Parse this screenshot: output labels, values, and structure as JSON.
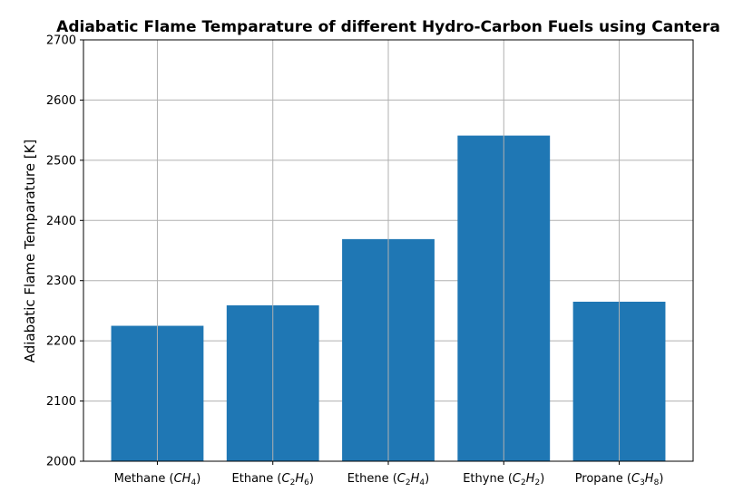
{
  "chart_data": {
    "type": "bar",
    "title": "Adiabatic Flame Temparature of different Hydro-Carbon Fuels using Cantera",
    "xlabel": "",
    "ylabel": "Adiabatic Flame Temparature [K]",
    "ylim": [
      2000,
      2700
    ],
    "yticks": [
      2000,
      2100,
      2200,
      2300,
      2400,
      2500,
      2600,
      2700
    ],
    "grid": true,
    "bar_color": "#1f77b4",
    "categories": [
      {
        "name": "Methane",
        "formula": [
          [
            "C",
            ""
          ],
          [
            "H",
            "4"
          ]
        ]
      },
      {
        "name": "Ethane",
        "formula": [
          [
            "C",
            "2"
          ],
          [
            "H",
            "6"
          ]
        ]
      },
      {
        "name": "Ethene",
        "formula": [
          [
            "C",
            "2"
          ],
          [
            "H",
            "4"
          ]
        ]
      },
      {
        "name": "Ethyne",
        "formula": [
          [
            "C",
            "2"
          ],
          [
            "H",
            "2"
          ]
        ]
      },
      {
        "name": "Propane",
        "formula": [
          [
            "C",
            "3"
          ],
          [
            "H",
            "8"
          ]
        ]
      }
    ],
    "values": [
      2225,
      2259,
      2369,
      2541,
      2265
    ]
  }
}
